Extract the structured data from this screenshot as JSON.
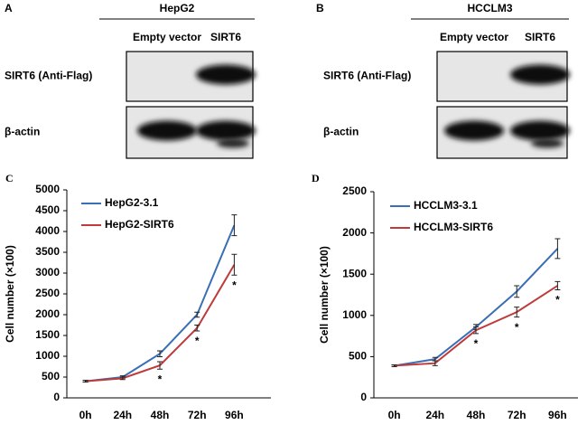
{
  "blots": [
    {
      "panel": "A",
      "cell_line": "HepG2",
      "lanes": [
        "Empty vector",
        "SIRT6"
      ],
      "rows": [
        "SIRT6 (Anti-Flag)",
        "β-actin"
      ]
    },
    {
      "panel": "B",
      "cell_line": "HCCLM3",
      "lanes": [
        "Empty vector",
        "SIRT6"
      ],
      "rows": [
        "SIRT6 (Anti-Flag)",
        "β-actin"
      ]
    }
  ],
  "chart_data": [
    {
      "type": "line",
      "panel": "C",
      "y_label": "Cell number (×100)",
      "categories": [
        "0h",
        "24h",
        "48h",
        "72h",
        "96h"
      ],
      "ylim": [
        0,
        5000
      ],
      "yticks": [
        0,
        500,
        1000,
        1500,
        2000,
        2500,
        3000,
        3500,
        4000,
        4500,
        5000
      ],
      "legend": "upper left",
      "significance_label": "*",
      "series": [
        {
          "name": "HepG2-3.1",
          "color": "#3a6eb5",
          "values": [
            400,
            500,
            1060,
            2000,
            4150
          ],
          "errors": [
            20,
            30,
            70,
            60,
            250
          ]
        },
        {
          "name": "HepG2-SIRT6",
          "color": "#bf3b3b",
          "values": [
            400,
            470,
            780,
            1680,
            3200
          ],
          "errors": [
            20,
            30,
            90,
            70,
            250
          ],
          "significant": [
            false,
            false,
            true,
            true,
            true
          ]
        }
      ]
    },
    {
      "type": "line",
      "panel": "D",
      "y_label": "Cell number (×100)",
      "categories": [
        "0h",
        "24h",
        "48h",
        "72h",
        "96h"
      ],
      "ylim": [
        0,
        2500
      ],
      "yticks": [
        0,
        500,
        1000,
        1500,
        2000,
        2500
      ],
      "legend": "upper left",
      "significance_label": "*",
      "series": [
        {
          "name": "HCCLM3-3.1",
          "color": "#3a6eb5",
          "values": [
            390,
            470,
            860,
            1290,
            1810
          ],
          "errors": [
            10,
            20,
            30,
            70,
            120
          ]
        },
        {
          "name": "HCCLM3-SIRT6",
          "color": "#bf3b3b",
          "values": [
            390,
            420,
            820,
            1040,
            1360
          ],
          "errors": [
            10,
            30,
            40,
            60,
            50
          ],
          "significant": [
            false,
            false,
            true,
            true,
            true
          ]
        }
      ]
    }
  ]
}
